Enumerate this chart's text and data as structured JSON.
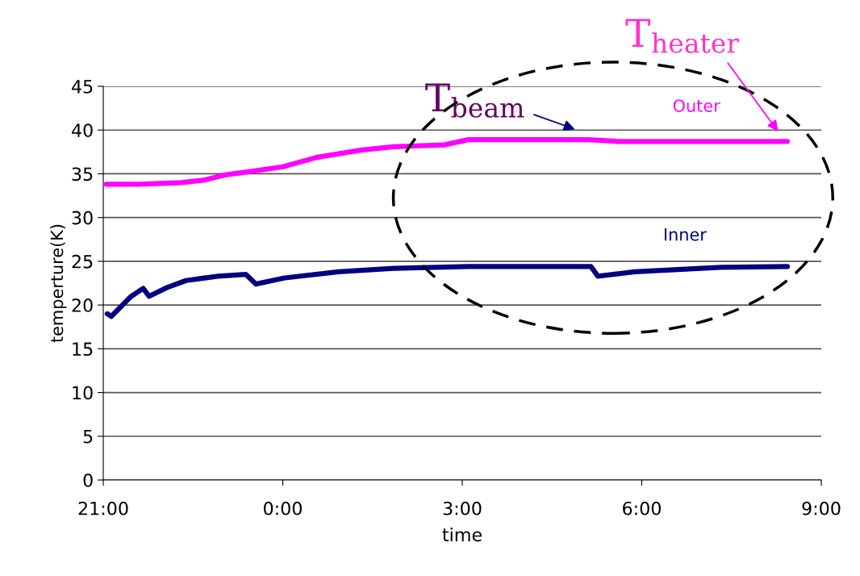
{
  "chart_data": {
    "type": "line",
    "xlabel": "time",
    "ylabel": "temperture(K)",
    "xlim": [
      "2000-01-01T21:00",
      "2000-01-02T09:00"
    ],
    "xticks": [
      {
        "value": "2000-01-01T21:00",
        "label": "21:00"
      },
      {
        "value": "2000-01-02T00:00",
        "label": "0:00"
      },
      {
        "value": "2000-01-02T03:00",
        "label": "3:00"
      },
      {
        "value": "2000-01-02T06:00",
        "label": "6:00"
      },
      {
        "value": "2000-01-02T09:00",
        "label": "9:00"
      }
    ],
    "ylim": [
      0,
      45
    ],
    "yticks": [
      0,
      5,
      10,
      15,
      20,
      25,
      30,
      35,
      40,
      45
    ],
    "grid": "y",
    "legend": false,
    "marker": "none",
    "line_style": "solid",
    "series": [
      {
        "name": "Outer",
        "color": "#ff00ff",
        "x": [
          "2000-01-01T21:03",
          "2000-01-01T21:36",
          "2000-01-01T22:18",
          "2000-01-01T22:42",
          "2000-01-01T23:03",
          "2000-01-01T23:30",
          "2000-01-02T00:00",
          "2000-01-02T00:35",
          "2000-01-02T01:18",
          "2000-01-02T01:51",
          "2000-01-02T02:42",
          "2000-01-02T03:06",
          "2000-01-02T05:06",
          "2000-01-02T05:36",
          "2000-01-02T08:26"
        ],
        "values": [
          33.8,
          33.8,
          34.0,
          34.3,
          34.9,
          35.3,
          35.8,
          36.9,
          37.7,
          38.1,
          38.3,
          38.9,
          38.9,
          38.7,
          38.7
        ]
      },
      {
        "name": "Inner",
        "color": "#000080",
        "x": [
          "2000-01-01T21:04",
          "2000-01-01T21:08",
          "2000-01-01T21:28",
          "2000-01-01T21:40",
          "2000-01-01T21:46",
          "2000-01-01T22:04",
          "2000-01-01T22:23",
          "2000-01-01T22:55",
          "2000-01-01T23:23",
          "2000-01-01T23:33",
          "2000-01-02T00:02",
          "2000-01-02T00:56",
          "2000-01-02T01:51",
          "2000-01-02T03:06",
          "2000-01-02T05:09",
          "2000-01-02T05:16",
          "2000-01-02T05:53",
          "2000-01-02T07:19",
          "2000-01-02T08:26"
        ],
        "values": [
          19.0,
          18.7,
          21.0,
          21.9,
          21.0,
          22.0,
          22.8,
          23.3,
          23.5,
          22.4,
          23.1,
          23.8,
          24.2,
          24.4,
          24.4,
          23.3,
          23.8,
          24.3,
          24.4
        ]
      }
    ],
    "annotations": [
      "T$_{beam}$",
      "T$_{heater}$"
    ]
  }
}
